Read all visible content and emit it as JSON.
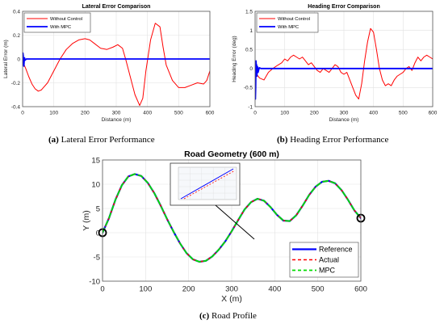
{
  "captions": {
    "a_letter": "(a)",
    "a_text": "Lateral Error Performance",
    "b_letter": "(b)",
    "b_text": "Heading Error Performance",
    "c_letter": "(c)",
    "c_text": "Road Profile"
  },
  "chart_data": [
    {
      "type": "line",
      "title": "Lateral Error Comparison",
      "xlabel": "Distance (m)",
      "ylabel": "Lateral Error (m)",
      "xlim": [
        0,
        600
      ],
      "ylim": [
        -0.4,
        0.4
      ],
      "xticks": [
        "0",
        "100",
        "200",
        "300",
        "400",
        "500",
        "600"
      ],
      "yticks": [
        "-0.4",
        "-0.2",
        "0",
        "0.2",
        "0.4"
      ],
      "grid": true,
      "legend": "top-left",
      "series": [
        {
          "name": "Without Control",
          "color": "#ff0000",
          "x": [
            0,
            10,
            20,
            30,
            40,
            50,
            60,
            80,
            100,
            120,
            140,
            160,
            180,
            200,
            215,
            230,
            250,
            270,
            290,
            305,
            320,
            330,
            345,
            360,
            375,
            385,
            395,
            410,
            425,
            440,
            450,
            460,
            480,
            500,
            520,
            540,
            560,
            580,
            590,
            600
          ],
          "y": [
            -0.02,
            -0.08,
            -0.15,
            -0.21,
            -0.25,
            -0.27,
            -0.26,
            -0.2,
            -0.1,
            0.0,
            0.08,
            0.13,
            0.16,
            0.17,
            0.16,
            0.13,
            0.09,
            0.08,
            0.1,
            0.12,
            0.09,
            0.0,
            -0.15,
            -0.3,
            -0.39,
            -0.33,
            -0.1,
            0.16,
            0.3,
            0.27,
            0.1,
            -0.05,
            -0.18,
            -0.24,
            -0.24,
            -0.22,
            -0.2,
            -0.21,
            -0.18,
            -0.1
          ]
        },
        {
          "name": "With MPC",
          "color": "#0000ff",
          "x": [
            0,
            1,
            2,
            3,
            4,
            5,
            6,
            8,
            12,
            20,
            600
          ],
          "y": [
            0,
            0.05,
            0.03,
            -0.04,
            -0.06,
            -0.02,
            0.01,
            -0.01,
            0,
            0,
            0
          ]
        }
      ]
    },
    {
      "type": "line",
      "title": "Heading Error Comparison",
      "xlabel": "Distance (m)",
      "ylabel": "Heading Error (deg)",
      "xlim": [
        0,
        600
      ],
      "ylim": [
        -1,
        1.5
      ],
      "xticks": [
        "0",
        "100",
        "200",
        "300",
        "400",
        "500",
        "600"
      ],
      "yticks": [
        "-1",
        "-0.5",
        "0",
        "0.5",
        "1",
        "1.5"
      ],
      "grid": true,
      "legend": "top-left",
      "series": [
        {
          "name": "Without Control",
          "color": "#ff0000",
          "x": [
            0,
            15,
            30,
            45,
            60,
            75,
            90,
            100,
            110,
            120,
            130,
            140,
            150,
            160,
            170,
            180,
            190,
            200,
            210,
            220,
            230,
            240,
            250,
            260,
            270,
            280,
            290,
            300,
            310,
            320,
            330,
            340,
            350,
            360,
            370,
            380,
            390,
            400,
            410,
            420,
            430,
            440,
            450,
            460,
            470,
            480,
            490,
            500,
            510,
            520,
            530,
            540,
            550,
            560,
            570,
            580,
            590,
            600
          ],
          "y": [
            -0.1,
            -0.25,
            -0.3,
            -0.1,
            0.0,
            0.08,
            0.15,
            0.25,
            0.2,
            0.3,
            0.35,
            0.3,
            0.25,
            0.3,
            0.2,
            0.1,
            0.15,
            0.05,
            -0.05,
            -0.1,
            0.0,
            -0.05,
            -0.1,
            0.0,
            0.1,
            0.05,
            -0.1,
            -0.15,
            -0.1,
            -0.3,
            -0.5,
            -0.7,
            -0.8,
            -0.4,
            0.2,
            0.7,
            1.05,
            0.95,
            0.5,
            0.0,
            -0.3,
            -0.45,
            -0.4,
            -0.45,
            -0.3,
            -0.2,
            -0.15,
            -0.1,
            0.0,
            0.05,
            -0.05,
            0.15,
            0.3,
            0.2,
            0.3,
            0.35,
            0.3,
            0.25
          ]
        },
        {
          "name": "With MPC",
          "color": "#0000ff",
          "x": [
            0,
            1,
            2,
            3,
            4,
            5,
            6,
            8,
            10,
            14,
            20,
            600
          ],
          "y": [
            0,
            -0.8,
            -0.5,
            0.2,
            0.05,
            0.1,
            -0.2,
            0.05,
            -0.1,
            0.02,
            0,
            0
          ]
        }
      ]
    },
    {
      "type": "line",
      "title": "Road Geometry (600 m)",
      "xlabel": "X (m)",
      "ylabel": "Y (m)",
      "xlim": [
        0,
        600
      ],
      "ylim": [
        -10,
        15
      ],
      "xticks": [
        "0",
        "100",
        "200",
        "300",
        "400",
        "500",
        "600"
      ],
      "yticks": [
        "-10",
        "-5",
        "0",
        "5",
        "10",
        "15"
      ],
      "grid": true,
      "legend": "bottom-right",
      "series": [
        {
          "name": "Reference",
          "color": "#0000ff",
          "style": "solid",
          "x": [
            0,
            15,
            30,
            45,
            60,
            75,
            90,
            105,
            120,
            135,
            150,
            165,
            180,
            195,
            210,
            225,
            240,
            255,
            270,
            285,
            300,
            315,
            330,
            345,
            360,
            375,
            390,
            405,
            420,
            435,
            450,
            465,
            480,
            495,
            510,
            525,
            540,
            555,
            570,
            585,
            600
          ],
          "y": [
            0,
            3,
            6.8,
            9.8,
            11.6,
            12.1,
            11.7,
            10.3,
            8.2,
            5.6,
            2.8,
            0.2,
            -2.2,
            -4.2,
            -5.5,
            -6,
            -5.8,
            -4.9,
            -3.5,
            -1.8,
            0.3,
            2.6,
            4.8,
            6.3,
            7,
            6.6,
            5.3,
            3.7,
            2.5,
            2.4,
            3.6,
            5.6,
            7.8,
            9.5,
            10.5,
            10.7,
            10.2,
            8.8,
            6.8,
            4.6,
            3
          ]
        },
        {
          "name": "Actual",
          "color": "#ff0000",
          "style": "dashed",
          "x": [
            0,
            15,
            30,
            45,
            60,
            75,
            90,
            105,
            120,
            135,
            150,
            165,
            180,
            195,
            210,
            225,
            240,
            255,
            270,
            285,
            300,
            315,
            330,
            345,
            360,
            375,
            390,
            405,
            420,
            435,
            450,
            465,
            480,
            495,
            510,
            525,
            540,
            555,
            570,
            585,
            600
          ],
          "y": [
            0,
            3,
            6.8,
            9.8,
            11.6,
            12.1,
            11.7,
            10.3,
            8.2,
            5.6,
            2.8,
            0.2,
            -2.2,
            -4.2,
            -5.5,
            -6,
            -5.8,
            -4.9,
            -3.5,
            -1.8,
            0.3,
            2.6,
            4.8,
            6.3,
            7,
            6.6,
            5.3,
            3.7,
            2.5,
            2.4,
            3.6,
            5.6,
            7.8,
            9.5,
            10.5,
            10.7,
            10.2,
            8.8,
            6.8,
            4.6,
            3
          ]
        },
        {
          "name": "MPC",
          "color": "#00dd00",
          "style": "dashed",
          "x": [
            0,
            15,
            30,
            45,
            60,
            75,
            90,
            105,
            120,
            135,
            150,
            165,
            180,
            195,
            210,
            225,
            240,
            255,
            270,
            285,
            300,
            315,
            330,
            345,
            360,
            375,
            390,
            405,
            420,
            435,
            450,
            465,
            480,
            495,
            510,
            525,
            540,
            555,
            570,
            585,
            600
          ],
          "y": [
            0,
            3,
            6.8,
            9.8,
            11.6,
            12.1,
            11.7,
            10.3,
            8.2,
            5.6,
            2.8,
            0.2,
            -2.2,
            -4.2,
            -5.5,
            -6,
            -5.8,
            -4.9,
            -3.5,
            -1.8,
            0.3,
            2.6,
            4.8,
            6.3,
            7,
            6.6,
            5.3,
            3.7,
            2.5,
            2.4,
            3.6,
            5.6,
            7.8,
            9.5,
            10.5,
            10.7,
            10.2,
            8.8,
            6.8,
            4.6,
            3
          ]
        }
      ],
      "markers": [
        {
          "x": 0,
          "y": 0
        },
        {
          "x": 600,
          "y": 3
        }
      ]
    }
  ]
}
